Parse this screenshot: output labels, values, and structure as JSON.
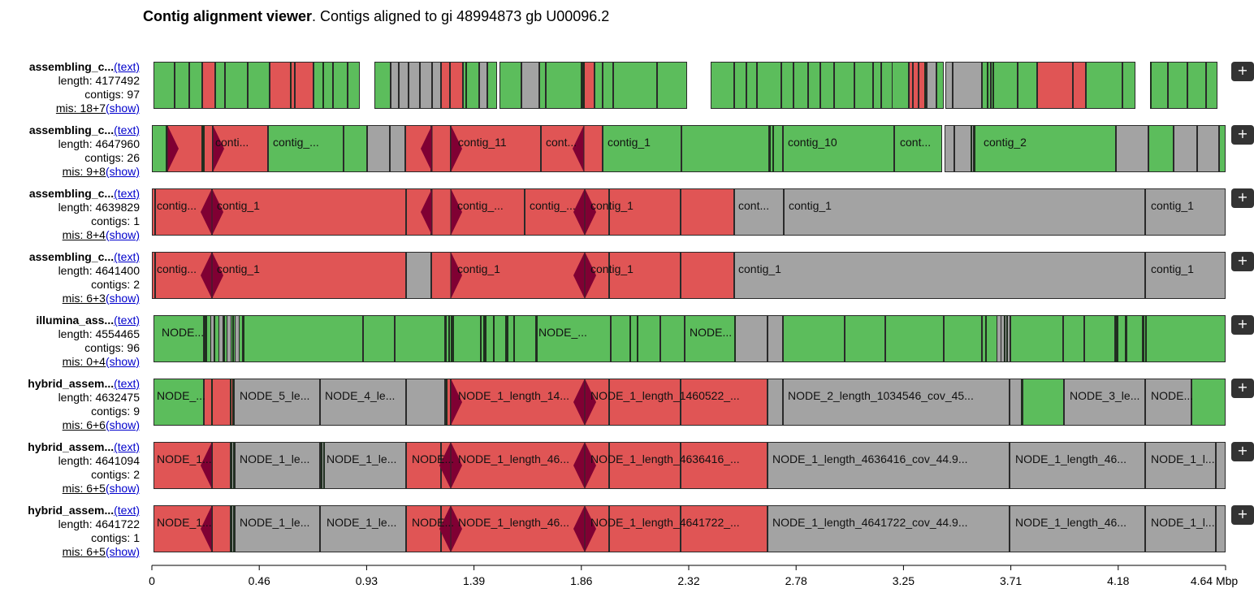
{
  "header": {
    "title_bold": "Contig alignment viewer",
    "title_rest": ". Contigs aligned to gi 48994873 gb U00096.2"
  },
  "assemblies": [
    {
      "name": "assembling_c...",
      "text_link": "(text)",
      "length": "length: 4177492",
      "contigs": "contigs: 97",
      "mis": "mis: 18+7",
      "show_link": "(show)",
      "expand": "+"
    },
    {
      "name": "assembling_c...",
      "text_link": "(text)",
      "length": "length: 4647960",
      "contigs": "contigs: 26",
      "mis": "mis: 9+8",
      "show_link": "(show)",
      "expand": "+"
    },
    {
      "name": "assembling_c...",
      "text_link": "(text)",
      "length": "length: 4639829",
      "contigs": "contigs: 1",
      "mis": "mis: 8+4",
      "show_link": "(show)",
      "expand": "+"
    },
    {
      "name": "assembling_c...",
      "text_link": "(text)",
      "length": "length: 4641400",
      "contigs": "contigs: 2",
      "mis": "mis: 6+3",
      "show_link": "(show)",
      "expand": "+"
    },
    {
      "name": "illumina_ass...",
      "text_link": "(text)",
      "length": "length: 4554465",
      "contigs": "contigs: 96",
      "mis": "mis: 0+4",
      "show_link": "(show)",
      "expand": "+"
    },
    {
      "name": "hybrid_assem...",
      "text_link": "(text)",
      "length": "length: 4632475",
      "contigs": "contigs: 9",
      "mis": "mis: 6+6",
      "show_link": "(show)",
      "expand": "+"
    },
    {
      "name": "hybrid_assem...",
      "text_link": "(text)",
      "length": "length: 4641094",
      "contigs": "contigs: 2",
      "mis": "mis: 6+5",
      "show_link": "(show)",
      "expand": "+"
    },
    {
      "name": "hybrid_assem...",
      "text_link": "(text)",
      "length": "length: 4641722",
      "contigs": "contigs: 1",
      "mis": "mis: 6+5",
      "show_link": "(show)",
      "expand": "+"
    }
  ],
  "contig_labels": {
    "r1": [
      "conti...",
      "contig_...",
      "contig_11",
      "cont...",
      "contig_1",
      "contig_10",
      "cont...",
      "contig_2"
    ],
    "r2": [
      "contig...",
      "contig_1",
      "contig_...",
      "contig_...",
      "contig_1",
      "cont...",
      "contig_1",
      "contig_1"
    ],
    "r3": [
      "contig...",
      "contig_1",
      "contig_1",
      "contig_1",
      "contig_1",
      "contig_1"
    ],
    "r4": [
      "NODE...",
      "NODE_...",
      "NODE..."
    ],
    "r5": [
      "NODE_...",
      "NODE_5_le...",
      "NODE_4_le...",
      "NODE_1_length_14...",
      "NODE_1_length_1460522_...",
      "NODE_2_length_1034546_cov_45...",
      "NODE_3_le...",
      "NODE..."
    ],
    "r6": [
      "NODE_1...",
      "NODE_1_le...",
      "NODE_1_le...",
      "NODE...",
      "NODE_1_length_46...",
      "NODE_1_length_4636416_...",
      "NODE_1_length_4636416_cov_44.9...",
      "NODE_1_length_46...",
      "NODE_1_l..."
    ],
    "r7": [
      "NODE_1...",
      "NODE_1_le...",
      "NODE_1_le...",
      "NODE...",
      "NODE_1_length_46...",
      "NODE_1_length_4641722_...",
      "NODE_1_length_4641722_cov_44.9...",
      "NODE_1_length_46...",
      "NODE_1_l..."
    ]
  },
  "axis": {
    "ticks": [
      "0",
      "0.46",
      "0.93",
      "1.39",
      "1.86",
      "2.32",
      "2.78",
      "3.25",
      "3.71",
      "4.18",
      "4.64 Mbp"
    ],
    "max_mbp": 4.64
  },
  "colors": {
    "correct": "#5cbd5c",
    "misassembled": "#e05555",
    "ambiguous": "#a3a3a3",
    "misassembly_marker": "#800033",
    "link": "#0000cc"
  }
}
